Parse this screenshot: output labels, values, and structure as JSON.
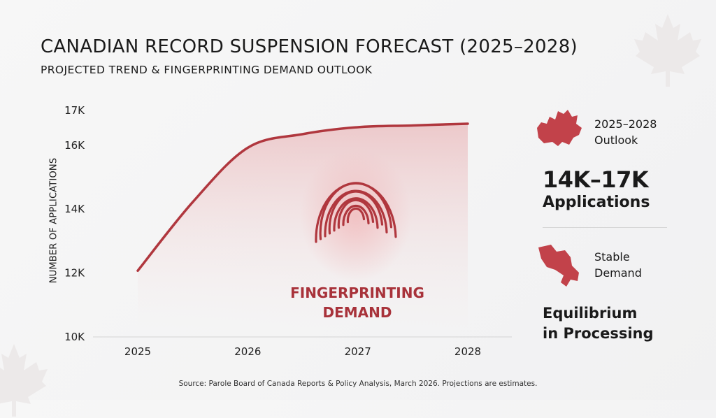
{
  "header": {
    "title": "CANADIAN RECORD SUSPENSION FORECAST (2025–2028)",
    "subtitle": "PROJECTED TREND & FINGERPRINTING DEMAND OUTLOOK"
  },
  "chart_data": {
    "type": "line",
    "title": "CANADIAN RECORD SUSPENSION FORECAST (2025–2028)",
    "ylabel": "NUMBER OF APPLICATIONS",
    "xlabel": "",
    "x": [
      2025,
      2025.5,
      2026,
      2026.5,
      2027,
      2027.5,
      2028
    ],
    "values": [
      12.05,
      14.2,
      15.9,
      16.3,
      16.5,
      16.55,
      16.6
    ],
    "x_ticks": [
      "2025",
      "2026",
      "2027",
      "2028"
    ],
    "y_ticks": [
      {
        "value": 10,
        "label": "10K"
      },
      {
        "value": 12,
        "label": "12K"
      },
      {
        "value": 14,
        "label": "14K"
      },
      {
        "value": 16,
        "label": "16K"
      },
      {
        "value": 17,
        "label": "17K"
      }
    ],
    "ylim": [
      10,
      17
    ],
    "xlim": [
      2024.6,
      2028.4
    ],
    "grid": false,
    "area_fill": true,
    "line_color": "#b0373e",
    "annotation": "FINGERPRINTING DEMAND"
  },
  "annotation": {
    "line1": "FINGERPRINTING",
    "line2": "DEMAND"
  },
  "sidebar": {
    "outlook_line1": "2025–2028",
    "outlook_line2": "Outlook",
    "range": "14K–17K",
    "range_label": "Applications",
    "stable_line1": "Stable",
    "stable_line2": "Demand",
    "equil_line1": "Equilibrium",
    "equil_line2": "in Processing"
  },
  "icons": [
    "canada-map-icon",
    "ontario-map-icon",
    "fingerprint-icon",
    "maple-leaf-icon"
  ],
  "accent_color": "#b0373e",
  "source": "Source: Parole Board of Canada Reports & Policy Analysis, March 2026. Projections are estimates."
}
